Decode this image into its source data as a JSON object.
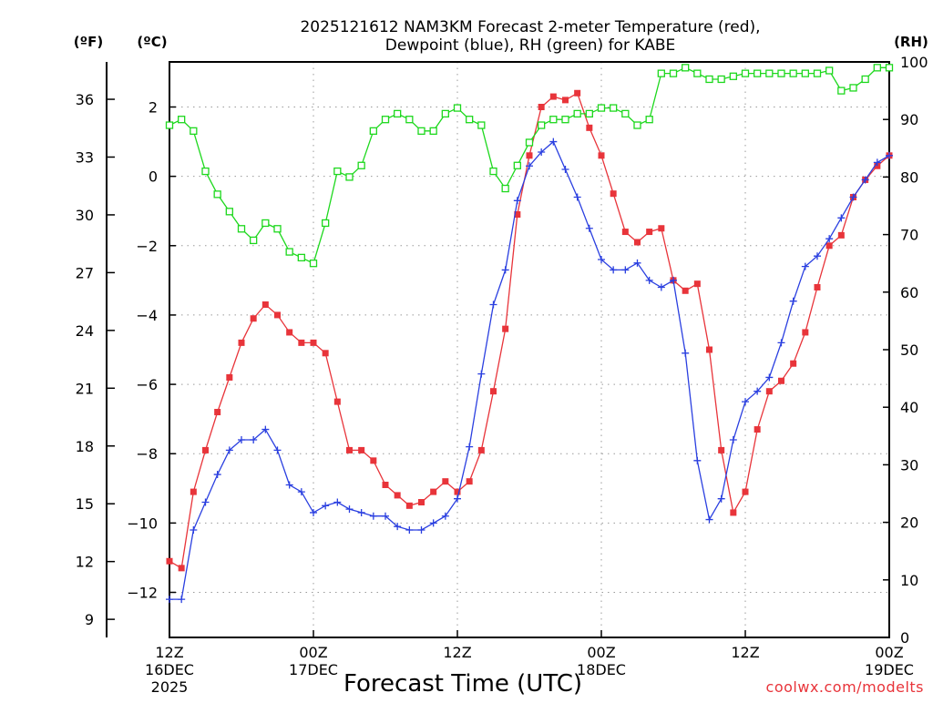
{
  "chart_data": {
    "type": "line",
    "title_line1": "2025121612 NAM3KM Forecast 2-meter Temperature (red),",
    "title_line2": "Dewpoint (blue), RH (green) for KABE",
    "xlabel": "Forecast Time (UTC)",
    "credit": "coolwx.com/modelts",
    "units": {
      "fahrenheit": "(ºF)",
      "celsius": "(ºC)",
      "rh": "(RH)"
    },
    "x_hours_range": [
      0,
      60
    ],
    "celsius_range": [
      -13.3,
      3.3
    ],
    "rh_range": [
      0,
      100
    ],
    "celsius_ticks": [
      -12,
      -10,
      -8,
      -6,
      -4,
      -2,
      0,
      2
    ],
    "fahrenheit_ticks": [
      9,
      12,
      15,
      18,
      21,
      24,
      27,
      30,
      33,
      36
    ],
    "rh_ticks": [
      0,
      10,
      20,
      30,
      40,
      50,
      60,
      70,
      80,
      90,
      100
    ],
    "x_ticks": [
      {
        "hour": 0,
        "time": "12Z",
        "date": "16DEC",
        "year": "2025"
      },
      {
        "hour": 12,
        "time": "00Z",
        "date": "17DEC",
        "year": ""
      },
      {
        "hour": 24,
        "time": "12Z",
        "date": "",
        "year": ""
      },
      {
        "hour": 36,
        "time": "00Z",
        "date": "18DEC",
        "year": ""
      },
      {
        "hour": 48,
        "time": "12Z",
        "date": "",
        "year": ""
      },
      {
        "hour": 60,
        "time": "00Z",
        "date": "19DEC",
        "year": ""
      }
    ],
    "grid": true,
    "series": [
      {
        "name": "Temperature",
        "unit": "C",
        "color": "#e8343a",
        "marker": "filled-square",
        "x": [
          0,
          1,
          2,
          3,
          4,
          5,
          6,
          7,
          8,
          9,
          10,
          11,
          12,
          13,
          14,
          15,
          16,
          17,
          18,
          19,
          20,
          21,
          22,
          23,
          24,
          25,
          26,
          27,
          28,
          29,
          30,
          31,
          32,
          33,
          34,
          35,
          36,
          37,
          38,
          39,
          40,
          41,
          42,
          43,
          44,
          45,
          46,
          47,
          48,
          49,
          50,
          51,
          52,
          53,
          54,
          55,
          56,
          57,
          58,
          59,
          60
        ],
        "values": [
          -11.1,
          -11.3,
          -9.1,
          -7.9,
          -6.8,
          -5.8,
          -4.8,
          -4.1,
          -3.7,
          -4.0,
          -4.5,
          -4.8,
          -4.8,
          -5.1,
          -6.5,
          -7.9,
          -7.9,
          -8.2,
          -8.9,
          -9.2,
          -9.5,
          -9.4,
          -9.1,
          -8.8,
          -9.1,
          -8.8,
          -7.9,
          -6.2,
          -4.4,
          -1.1,
          0.6,
          2.0,
          2.3,
          2.2,
          2.4,
          1.4,
          0.6,
          -0.5,
          -1.6,
          -1.9,
          -1.6,
          -1.5,
          -3.0,
          -3.3,
          -3.1,
          -5.0,
          -7.9,
          -9.7,
          -9.1,
          -7.3,
          -6.2,
          -5.9,
          -5.4,
          -4.5,
          -3.2,
          -2.0,
          -1.7,
          -0.6,
          -0.1,
          0.3,
          0.6
        ]
      },
      {
        "name": "Dewpoint",
        "unit": "C",
        "color": "#2a3fe0",
        "marker": "plus",
        "x": [
          0,
          1,
          2,
          3,
          4,
          5,
          6,
          7,
          8,
          9,
          10,
          11,
          12,
          13,
          14,
          15,
          16,
          17,
          18,
          19,
          20,
          21,
          22,
          23,
          24,
          25,
          26,
          27,
          28,
          29,
          30,
          31,
          32,
          33,
          34,
          35,
          36,
          37,
          38,
          39,
          40,
          41,
          42,
          43,
          44,
          45,
          46,
          47,
          48,
          49,
          50,
          51,
          52,
          53,
          54,
          55,
          56,
          57,
          58,
          59,
          60
        ],
        "values": [
          -12.2,
          -12.2,
          -10.2,
          -9.4,
          -8.6,
          -7.9,
          -7.6,
          -7.6,
          -7.3,
          -7.9,
          -8.9,
          -9.1,
          -9.7,
          -9.5,
          -9.4,
          -9.6,
          -9.7,
          -9.8,
          -9.8,
          -10.1,
          -10.2,
          -10.2,
          -10.0,
          -9.8,
          -9.3,
          -7.8,
          -5.7,
          -3.7,
          -2.7,
          -0.7,
          0.3,
          0.7,
          1.0,
          0.2,
          -0.6,
          -1.5,
          -2.4,
          -2.7,
          -2.7,
          -2.5,
          -3.0,
          -3.2,
          -3.0,
          -5.1,
          -8.2,
          -9.9,
          -9.3,
          -7.6,
          -6.5,
          -6.2,
          -5.8,
          -4.8,
          -3.6,
          -2.6,
          -2.3,
          -1.8,
          -1.2,
          -0.6,
          -0.1,
          0.4,
          0.6
        ]
      },
      {
        "name": "RH",
        "unit": "%",
        "color": "#1dd81d",
        "marker": "open-square",
        "x": [
          0,
          1,
          2,
          3,
          4,
          5,
          6,
          7,
          8,
          9,
          10,
          11,
          12,
          13,
          14,
          15,
          16,
          17,
          18,
          19,
          20,
          21,
          22,
          23,
          24,
          25,
          26,
          27,
          28,
          29,
          30,
          31,
          32,
          33,
          34,
          35,
          36,
          37,
          38,
          39,
          40,
          41,
          42,
          43,
          44,
          45,
          46,
          47,
          48,
          49,
          50,
          51,
          52,
          53,
          54,
          55,
          56,
          57,
          58,
          59,
          60
        ],
        "values": [
          89,
          90,
          88,
          81,
          77,
          74,
          71,
          69,
          72,
          71,
          67,
          66,
          65,
          72,
          81,
          80,
          82,
          88,
          90,
          91,
          90,
          88,
          88,
          91,
          92,
          90,
          89,
          81,
          78,
          82,
          86,
          89,
          90,
          90,
          91,
          91,
          92,
          92,
          91,
          89,
          90,
          98,
          98,
          99,
          98,
          97,
          97,
          97.5,
          98,
          98,
          98,
          98,
          98,
          98,
          98,
          98.5,
          95,
          95.5,
          97,
          99,
          99
        ]
      }
    ]
  }
}
